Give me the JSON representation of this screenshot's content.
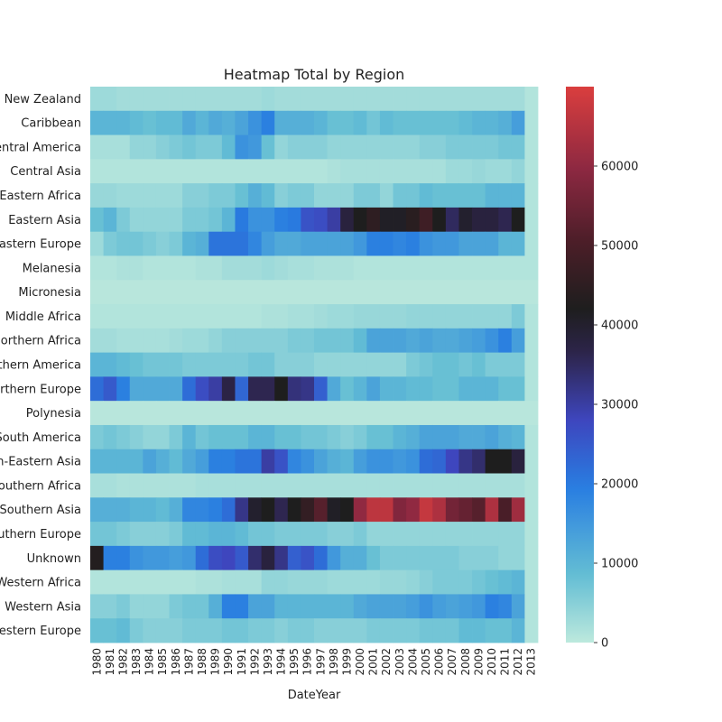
{
  "chart_data": {
    "type": "heatmap",
    "title": "Heatmap Total by Region",
    "xlabel": "DateYear",
    "ylabel": "",
    "x": [
      "1980",
      "1981",
      "1982",
      "1983",
      "1984",
      "1985",
      "1986",
      "1987",
      "1988",
      "1989",
      "1990",
      "1991",
      "1992",
      "1993",
      "1994",
      "1995",
      "1996",
      "1997",
      "1998",
      "1999",
      "2000",
      "2001",
      "2002",
      "2003",
      "2004",
      "2005",
      "2006",
      "2007",
      "2008",
      "2009",
      "2010",
      "2011",
      "2012",
      "2013"
    ],
    "y": [
      "New Zealand",
      "Caribbean",
      "Central America",
      "Central Asia",
      "Eastern Africa",
      "Eastern Asia",
      "Eastern Europe",
      "Melanesia",
      "Micronesia",
      "Middle Africa",
      "Northern Africa",
      "Northern America",
      "Northern Europe",
      "Polynesia",
      "South America",
      "South-Eastern Asia",
      "Southern Africa",
      "Southern Asia",
      "Southern Europe",
      "Unknown",
      "Western Africa",
      "Western Asia",
      "Western Europe"
    ],
    "values": [
      [
        3000,
        3000,
        2500,
        2500,
        2500,
        2500,
        2500,
        2500,
        2500,
        2500,
        2500,
        2500,
        2500,
        3000,
        2500,
        2500,
        2500,
        2500,
        2500,
        2500,
        2500,
        2500,
        2500,
        2500,
        2500,
        2500,
        2500,
        2500,
        2500,
        2500,
        2500,
        2500,
        2500,
        1000
      ],
      [
        10000,
        10000,
        10000,
        9000,
        8000,
        9000,
        9000,
        12000,
        10000,
        12000,
        11000,
        13000,
        16000,
        19000,
        11000,
        11000,
        11000,
        10000,
        8000,
        8000,
        9000,
        7000,
        9000,
        8000,
        8000,
        8000,
        8000,
        8000,
        9000,
        10000,
        10000,
        11000,
        14000,
        1000
      ],
      [
        2000,
        2000,
        2000,
        4000,
        4000,
        5000,
        6000,
        7000,
        6000,
        6000,
        9000,
        16000,
        15000,
        8000,
        4000,
        5000,
        5000,
        5000,
        4000,
        4000,
        4000,
        4000,
        4000,
        4000,
        4000,
        5000,
        5000,
        6000,
        6000,
        6000,
        6000,
        7000,
        7000,
        1000
      ],
      [
        1000,
        1000,
        1000,
        1000,
        1000,
        1000,
        1000,
        1000,
        1000,
        1000,
        1000,
        1000,
        1000,
        1000,
        1000,
        1000,
        1000,
        1000,
        1500,
        2000,
        2000,
        2000,
        2000,
        2000,
        2000,
        2000,
        2000,
        3000,
        3000,
        3500,
        3000,
        3000,
        4000,
        1000
      ],
      [
        3500,
        3500,
        3000,
        3000,
        3000,
        3000,
        3000,
        5000,
        5000,
        6000,
        6000,
        8000,
        11000,
        9000,
        5000,
        6000,
        6000,
        4000,
        4000,
        4000,
        6000,
        6000,
        4000,
        7000,
        7000,
        9000,
        8000,
        8000,
        8000,
        8000,
        10000,
        10000,
        10000,
        1000
      ],
      [
        8000,
        10000,
        6000,
        4000,
        4000,
        4000,
        4000,
        6000,
        6000,
        7000,
        10000,
        20000,
        16000,
        16000,
        19000,
        20000,
        26000,
        27000,
        30000,
        38000,
        42000,
        45000,
        41000,
        41000,
        44000,
        48000,
        42000,
        35000,
        40000,
        38000,
        38000,
        36000,
        42000,
        1000
      ],
      [
        3000,
        6000,
        7000,
        7000,
        6000,
        5000,
        6000,
        10000,
        11000,
        21000,
        21000,
        21000,
        18000,
        14000,
        12000,
        12000,
        13000,
        13000,
        13000,
        13000,
        15000,
        19000,
        19000,
        18000,
        19000,
        16000,
        15000,
        15000,
        13000,
        13000,
        13000,
        10000,
        10000,
        1000
      ],
      [
        1000,
        1000,
        1500,
        1500,
        1000,
        1000,
        1000,
        1000,
        1500,
        1500,
        2500,
        2500,
        2500,
        3000,
        2500,
        2000,
        2000,
        1500,
        1500,
        1500,
        1000,
        1000,
        1000,
        1000,
        1000,
        1000,
        1000,
        1000,
        1000,
        1000,
        1000,
        1000,
        1000,
        1000
      ],
      [
        500,
        500,
        500,
        500,
        500,
        500,
        500,
        500,
        500,
        500,
        500,
        500,
        500,
        500,
        500,
        500,
        500,
        500,
        500,
        500,
        500,
        500,
        500,
        500,
        500,
        500,
        500,
        500,
        500,
        500,
        500,
        500,
        500,
        500
      ],
      [
        1000,
        1000,
        1000,
        1000,
        1000,
        1000,
        1000,
        1000,
        1000,
        1000,
        1000,
        1000,
        1000,
        1500,
        1500,
        2000,
        2000,
        2500,
        3000,
        3000,
        3500,
        3500,
        3500,
        3500,
        4000,
        4000,
        4000,
        4000,
        4000,
        4000,
        4000,
        4000,
        6000,
        1000
      ],
      [
        2500,
        2500,
        2000,
        2000,
        2000,
        2000,
        2500,
        3000,
        3000,
        4000,
        5000,
        5000,
        5000,
        5000,
        5000,
        6000,
        6000,
        7000,
        7000,
        7000,
        9000,
        13000,
        13000,
        13000,
        12000,
        13000,
        12000,
        12000,
        13000,
        14000,
        16000,
        19000,
        14000,
        1000
      ],
      [
        10000,
        10000,
        9000,
        8000,
        7000,
        7000,
        7000,
        6000,
        6000,
        6000,
        6000,
        6000,
        7000,
        7000,
        5000,
        5000,
        5000,
        4000,
        4000,
        4000,
        4000,
        4000,
        4000,
        4000,
        6000,
        7000,
        8000,
        8000,
        7000,
        8000,
        6000,
        6000,
        6000,
        1000
      ],
      [
        22000,
        25000,
        19000,
        12000,
        12000,
        12000,
        12000,
        22000,
        27000,
        30000,
        37000,
        23000,
        36000,
        36000,
        42000,
        33000,
        32000,
        24000,
        12000,
        8000,
        10000,
        13000,
        10000,
        10000,
        9000,
        9000,
        8000,
        8000,
        10000,
        10000,
        10000,
        8000,
        8000,
        1000
      ],
      [
        500,
        500,
        500,
        500,
        500,
        500,
        500,
        500,
        500,
        500,
        500,
        500,
        500,
        500,
        500,
        500,
        500,
        500,
        500,
        500,
        500,
        500,
        500,
        500,
        500,
        500,
        500,
        500,
        500,
        500,
        500,
        500,
        500,
        500
      ],
      [
        6000,
        7000,
        6000,
        5000,
        4000,
        4000,
        6000,
        10000,
        7000,
        8000,
        8000,
        8000,
        10000,
        10000,
        8000,
        8000,
        7000,
        7000,
        6000,
        5000,
        6000,
        8000,
        8000,
        10000,
        11000,
        13000,
        13000,
        13000,
        12000,
        12000,
        13000,
        11000,
        10000,
        1000
      ],
      [
        10000,
        10000,
        10000,
        10000,
        13000,
        11000,
        9000,
        12000,
        14000,
        19000,
        19000,
        21000,
        21000,
        30000,
        26000,
        18000,
        16000,
        13000,
        11000,
        10000,
        14000,
        16000,
        16000,
        15000,
        16000,
        22000,
        23000,
        28000,
        32000,
        34000,
        42000,
        42000,
        38000,
        1000
      ],
      [
        2000,
        2000,
        1500,
        1500,
        1500,
        1500,
        1500,
        1500,
        2000,
        2000,
        2000,
        2000,
        2000,
        2000,
        2000,
        2000,
        2000,
        2000,
        2000,
        2000,
        2000,
        2000,
        2000,
        2000,
        2000,
        2000,
        2000,
        2000,
        2000,
        2000,
        2000,
        2000,
        2000,
        1000
      ],
      [
        11000,
        11000,
        11000,
        10000,
        10000,
        9000,
        11000,
        18000,
        18000,
        19000,
        22000,
        32000,
        40000,
        42000,
        36000,
        42000,
        46000,
        52000,
        41000,
        42000,
        60000,
        66000,
        66000,
        58000,
        60000,
        67000,
        64000,
        56000,
        54000,
        52000,
        64000,
        50000,
        62000,
        1000
      ],
      [
        7000,
        7000,
        6000,
        5000,
        5000,
        5000,
        6000,
        9000,
        9000,
        10000,
        10000,
        9000,
        7000,
        7000,
        6000,
        6000,
        6000,
        6000,
        5000,
        5000,
        6000,
        4000,
        4000,
        4000,
        4000,
        4000,
        4000,
        4000,
        4000,
        4000,
        4000,
        4000,
        4000,
        1000
      ],
      [
        43000,
        19000,
        19000,
        16000,
        15000,
        15000,
        14000,
        15000,
        22000,
        27000,
        28000,
        25000,
        34000,
        38000,
        32000,
        24000,
        26000,
        22000,
        15000,
        11000,
        11000,
        8000,
        6000,
        6000,
        6000,
        6000,
        6000,
        6000,
        5000,
        5000,
        5000,
        4000,
        4000,
        1000
      ],
      [
        1000,
        1000,
        1000,
        1000,
        1000,
        1000,
        1000,
        1000,
        1500,
        1500,
        2000,
        2000,
        2000,
        4000,
        4000,
        3500,
        3500,
        3500,
        3000,
        3000,
        3000,
        3000,
        3500,
        3500,
        4000,
        5000,
        6000,
        6000,
        6000,
        7000,
        8000,
        9000,
        10000,
        1000
      ],
      [
        5000,
        5000,
        6000,
        4000,
        4000,
        4000,
        6000,
        7000,
        7000,
        11000,
        19000,
        19000,
        13000,
        13000,
        10000,
        10000,
        10000,
        10000,
        10000,
        10000,
        12000,
        13000,
        13000,
        13000,
        14000,
        16000,
        14000,
        13000,
        14000,
        15000,
        19000,
        18000,
        13000,
        1000
      ],
      [
        8000,
        8000,
        9000,
        6000,
        5000,
        5000,
        5000,
        6000,
        6000,
        6000,
        7000,
        7000,
        6000,
        6000,
        5000,
        6000,
        6000,
        5000,
        5000,
        5000,
        5000,
        6000,
        6000,
        6000,
        6000,
        7000,
        7000,
        7000,
        9000,
        9000,
        8000,
        8000,
        10000,
        1000
      ]
    ],
    "vmin": 0,
    "vmax": 70000,
    "colorbar_ticks": [
      "0",
      "10000",
      "20000",
      "30000",
      "40000",
      "50000",
      "60000"
    ],
    "colormap": "icefire",
    "colorbar_position": "right"
  }
}
